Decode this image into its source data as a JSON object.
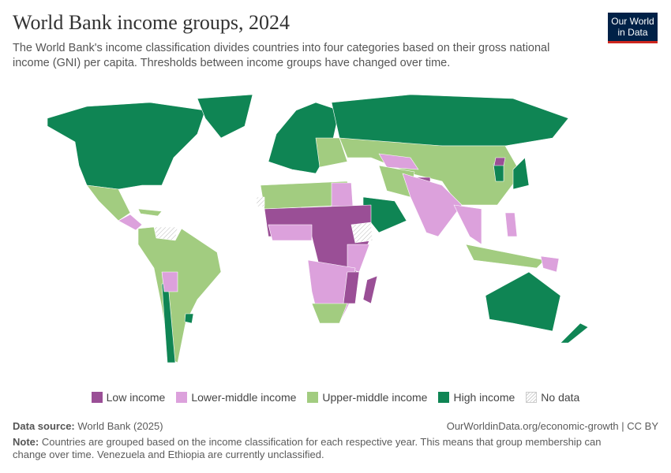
{
  "header": {
    "title": "World Bank income groups, 2024",
    "subtitle": "The World Bank's income classification divides countries into four categories based on their gross national income (GNI) per capita. Thresholds between income groups have changed over time.",
    "logo_text": "Our World in Data"
  },
  "colors": {
    "low": "#9a4f96",
    "lower_middle": "#dca1dc",
    "upper_middle": "#a2cc80",
    "high": "#0f8554",
    "no_data": "#e6e6e6"
  },
  "legend": [
    {
      "label": "Low income",
      "key": "low"
    },
    {
      "label": "Lower-middle income",
      "key": "lower_middle"
    },
    {
      "label": "Upper-middle income",
      "key": "upper_middle"
    },
    {
      "label": "High income",
      "key": "high"
    },
    {
      "label": "No data",
      "key": "no_data"
    }
  ],
  "footer": {
    "source_label": "Data source:",
    "source_value": "World Bank (2025)",
    "url": "OurWorldinData.org/economic-growth | CC BY",
    "note_label": "Note:",
    "note_value": "Countries are grouped based on the income classification for each respective year. This means that group membership can change over time. Venezuela and Ethiopia are currently unclassified."
  }
}
